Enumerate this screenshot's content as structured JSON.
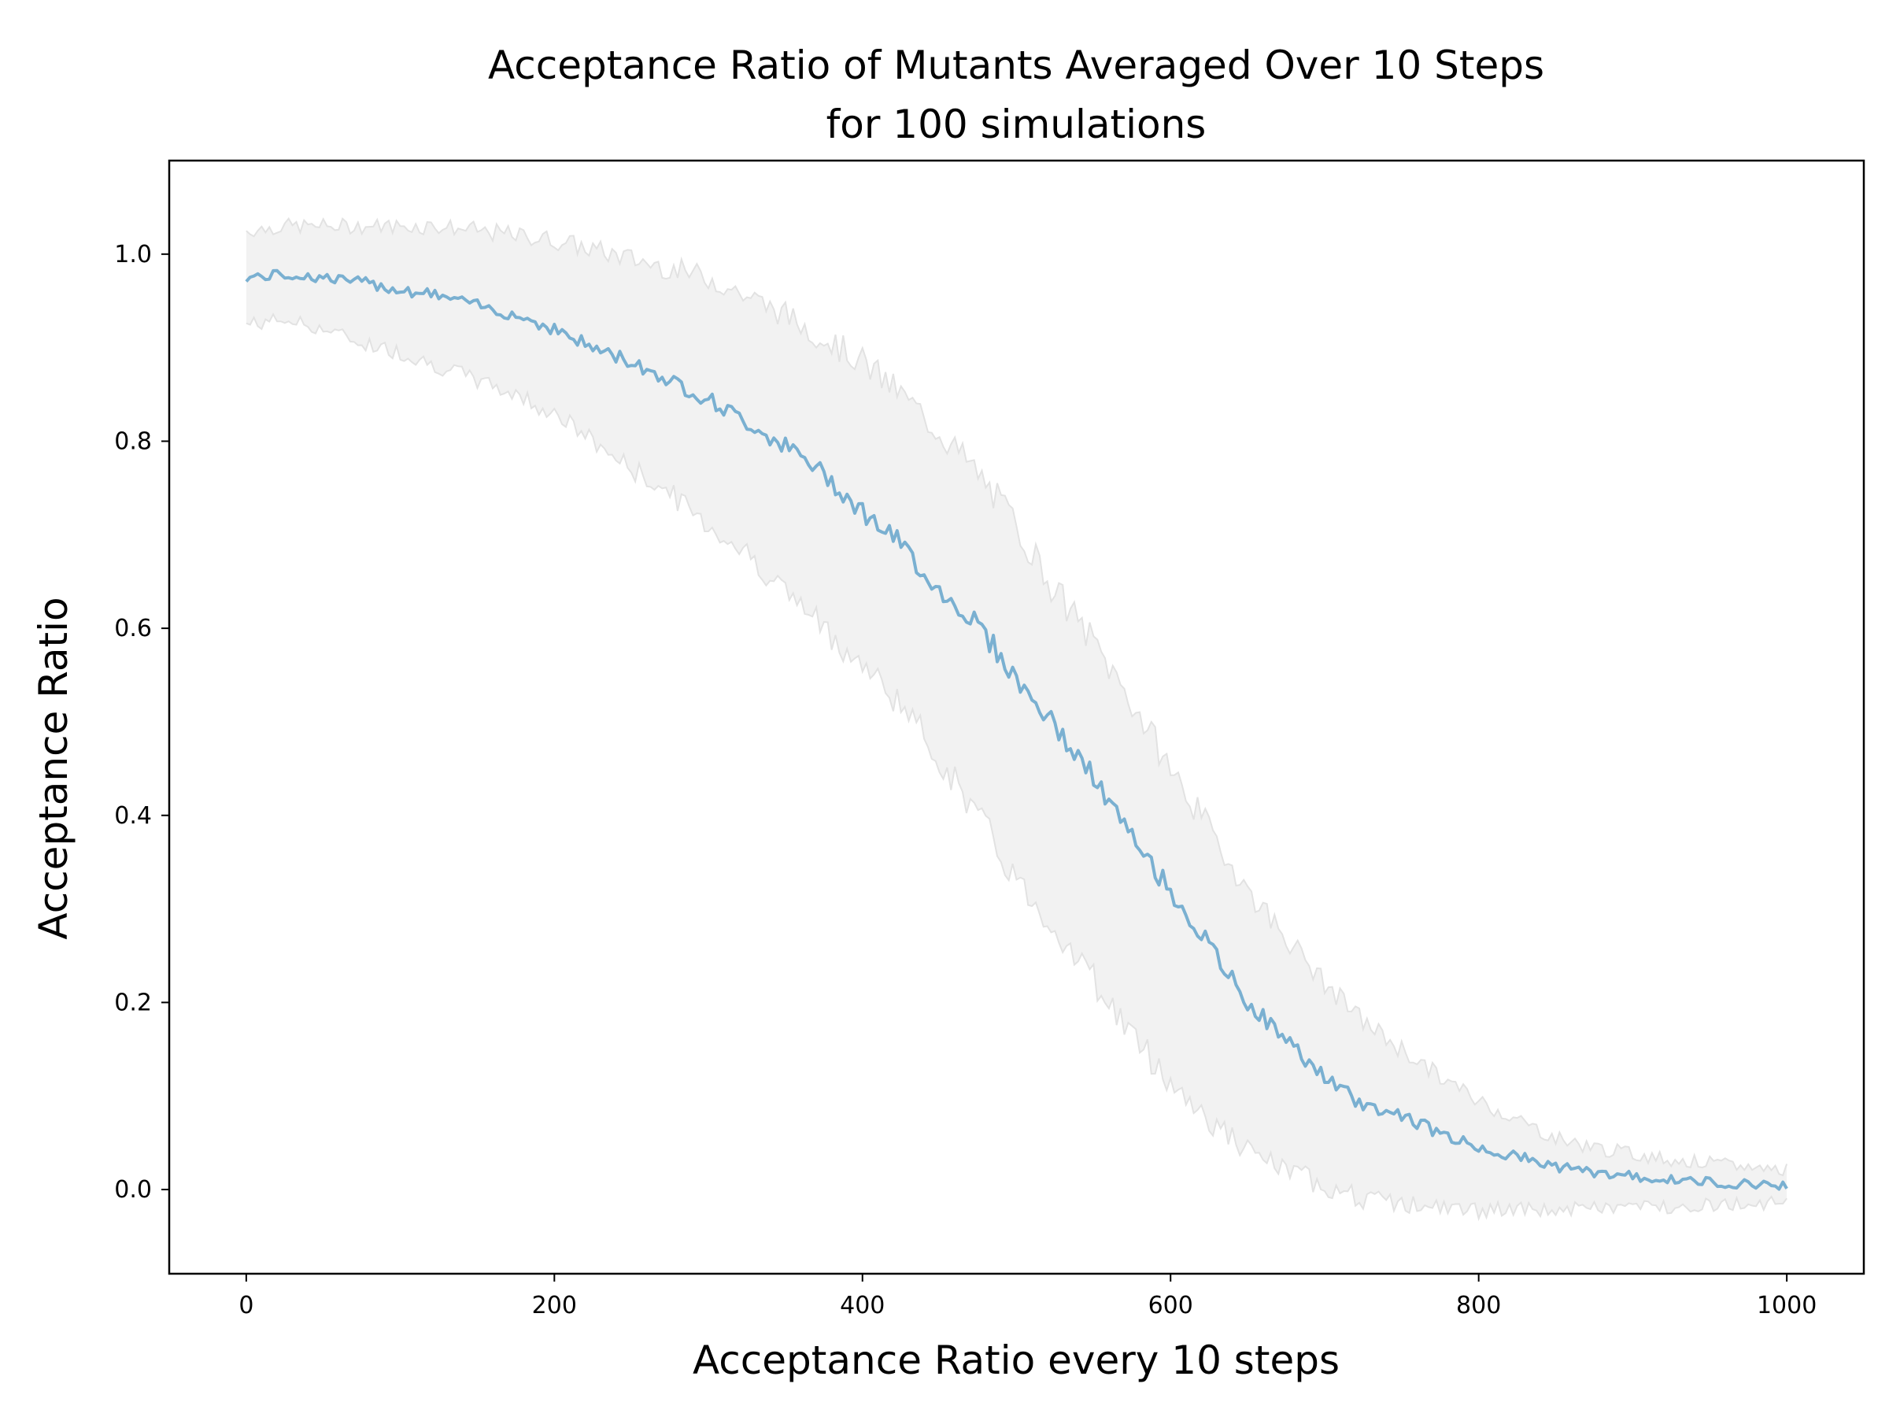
{
  "chart_data": {
    "type": "line",
    "title_lines": [
      "Acceptance Ratio of Mutants Averaged Over 10 Steps",
      "for 100 simulations"
    ],
    "xlabel": "Acceptance Ratio every 10 steps",
    "ylabel": "Acceptance Ratio",
    "xlim": [
      -50,
      1050
    ],
    "ylim": [
      -0.09,
      1.1
    ],
    "xticks": [
      0,
      200,
      400,
      600,
      800,
      1000
    ],
    "xtick_labels": [
      "0",
      "200",
      "400",
      "600",
      "800",
      "1000"
    ],
    "yticks": [
      0.0,
      0.2,
      0.4,
      0.6,
      0.8,
      1.0
    ],
    "ytick_labels": [
      "0.0",
      "0.2",
      "0.4",
      "0.6",
      "0.8",
      "1.0"
    ],
    "grid": false,
    "colors": {
      "mean_line": "#7ab0d1",
      "band_fill": "#f2f2f2",
      "band_edge": "#e2e2e2"
    },
    "x": [
      0,
      25,
      50,
      75,
      100,
      125,
      150,
      175,
      200,
      225,
      250,
      275,
      300,
      325,
      350,
      375,
      400,
      425,
      450,
      475,
      500,
      525,
      550,
      575,
      600,
      625,
      650,
      675,
      700,
      725,
      750,
      775,
      800,
      825,
      850,
      875,
      900,
      925,
      950,
      975,
      1000
    ],
    "series": [
      {
        "role": "mean",
        "values": [
          0.975,
          0.978,
          0.975,
          0.97,
          0.962,
          0.956,
          0.945,
          0.935,
          0.92,
          0.9,
          0.885,
          0.865,
          0.845,
          0.82,
          0.795,
          0.765,
          0.725,
          0.69,
          0.64,
          0.605,
          0.545,
          0.495,
          0.44,
          0.375,
          0.32,
          0.26,
          0.2,
          0.16,
          0.12,
          0.09,
          0.08,
          0.06,
          0.045,
          0.035,
          0.025,
          0.018,
          0.014,
          0.01,
          0.008,
          0.006,
          0.005
        ]
      },
      {
        "role": "upper",
        "values": [
          1.025,
          1.03,
          1.03,
          1.03,
          1.03,
          1.03,
          1.025,
          1.02,
          1.015,
          1.005,
          0.995,
          0.985,
          0.975,
          0.955,
          0.935,
          0.91,
          0.885,
          0.85,
          0.81,
          0.765,
          0.71,
          0.64,
          0.585,
          0.52,
          0.45,
          0.385,
          0.32,
          0.27,
          0.22,
          0.18,
          0.15,
          0.12,
          0.095,
          0.075,
          0.055,
          0.045,
          0.038,
          0.032,
          0.028,
          0.024,
          0.022
        ]
      },
      {
        "role": "lower",
        "values": [
          0.925,
          0.93,
          0.92,
          0.905,
          0.895,
          0.88,
          0.865,
          0.85,
          0.83,
          0.8,
          0.77,
          0.745,
          0.71,
          0.68,
          0.64,
          0.6,
          0.56,
          0.52,
          0.46,
          0.4,
          0.33,
          0.28,
          0.225,
          0.165,
          0.115,
          0.075,
          0.04,
          0.02,
          0.005,
          -0.01,
          -0.015,
          -0.02,
          -0.022,
          -0.022,
          -0.022,
          -0.02,
          -0.018,
          -0.018,
          -0.016,
          -0.015,
          -0.014
        ]
      }
    ]
  }
}
